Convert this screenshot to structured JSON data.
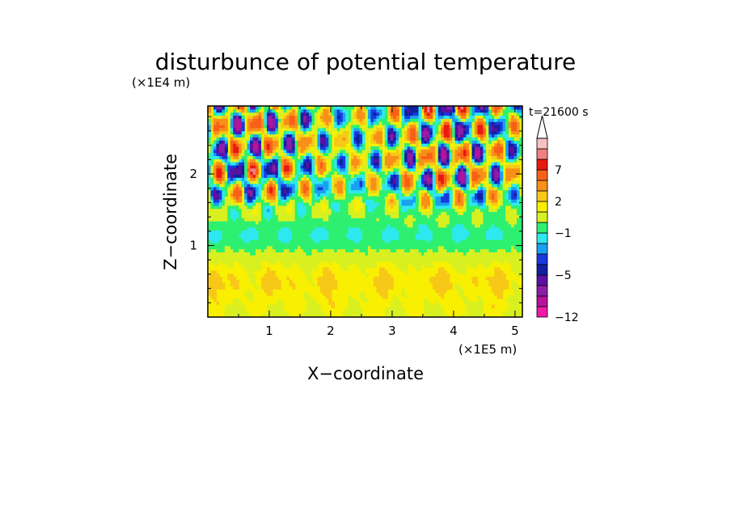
{
  "chart_data": {
    "type": "heatmap",
    "title": "disturbunce of potential temperature",
    "time_label": "t=21600 s",
    "xlabel": "X−coordinate",
    "ylabel": "Z−coordinate",
    "x_unit": "(×1E5 m)",
    "y_unit": "(×1E4 m)",
    "xlim": [
      0,
      5.12
    ],
    "ylim": [
      0,
      2.95
    ],
    "x_ticks": [
      "1",
      "2",
      "3",
      "4",
      "5"
    ],
    "y_ticks": [
      "1",
      "2"
    ],
    "colorbar": {
      "levels": [
        -12,
        -10,
        -8,
        -6,
        -5,
        -4,
        -3,
        -2,
        -1,
        0,
        1,
        2,
        3,
        5,
        7,
        9,
        11
      ],
      "labels": [
        "−12",
        "−5",
        "−1",
        "2",
        "7"
      ],
      "colors": [
        "#ee1aa8",
        "#b8129c",
        "#8a1ea8",
        "#5a10a0",
        "#1020a0",
        "#1a38e0",
        "#1aa0f0",
        "#2ee8f0",
        "#2ef070",
        "#d8f020",
        "#f8f000",
        "#f8c818",
        "#f89018",
        "#f86018",
        "#e81a10",
        "#f08080",
        "#f8c0c0"
      ],
      "extend": "max"
    },
    "features": [
      {
        "region": "z < 1.0",
        "description": "warm band, values about 0 to 2"
      },
      {
        "region": "z 1.0 to 1.4",
        "description": "near-zero band, values about -1 to 0"
      },
      {
        "region": "z > 1.5",
        "description": "wave train, values from about -6 to 7"
      }
    ]
  }
}
